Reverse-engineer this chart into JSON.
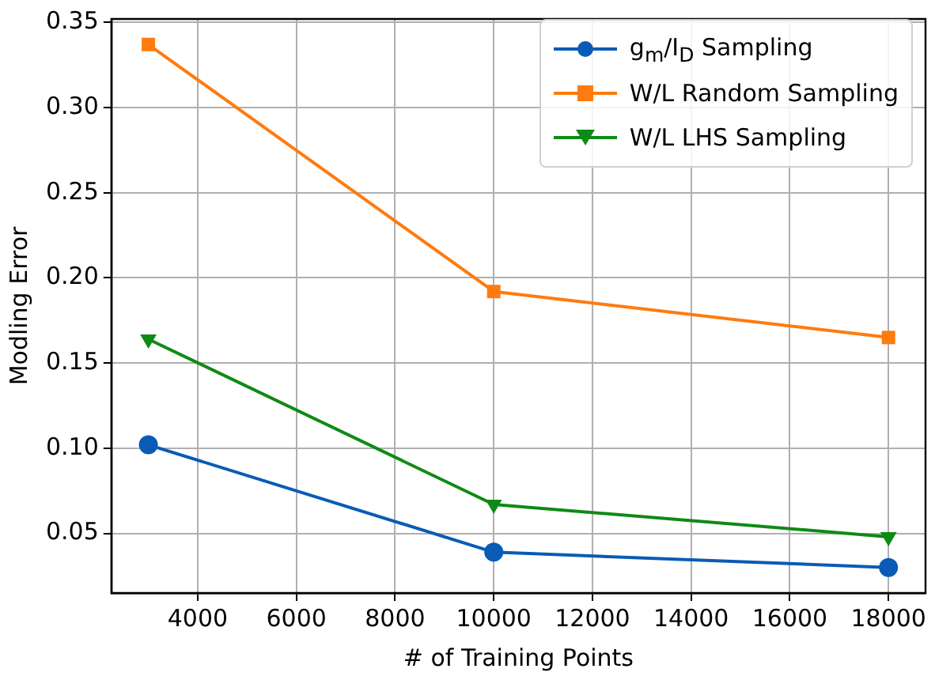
{
  "chart_data": {
    "type": "line",
    "xlabel": "# of Training Points",
    "ylabel": "Modling Error",
    "x": [
      3000,
      10000,
      18000
    ],
    "series": [
      {
        "name": "g$_{m}$/I$_{D}$ Sampling",
        "color": "#0a5bb5",
        "values": [
          0.102,
          0.039,
          0.03
        ],
        "marker": "circle"
      },
      {
        "name": "W/L Random Sampling",
        "color": "#ff7b0f",
        "values": [
          0.337,
          0.192,
          0.165
        ],
        "marker": "square"
      },
      {
        "name": "W/L LHS Sampling",
        "color": "#0f8a14",
        "values": [
          0.164,
          0.067,
          0.048
        ],
        "marker": "triangle"
      }
    ],
    "xlim": [
      2250,
      18750
    ],
    "xticks": [
      4000,
      6000,
      8000,
      10000,
      12000,
      14000,
      16000,
      18000
    ],
    "ylim": [
      0.015,
      0.352
    ],
    "yticks": [
      0.05,
      {
        "value": 0.1,
        "label": "0.10"
      },
      0.15,
      {
        "value": 0.2,
        "label": "0.20"
      },
      0.25,
      {
        "value": 0.3,
        "label": "0.30"
      },
      0.35
    ],
    "grid": true,
    "legend": "top right",
    "line_style": "solid"
  }
}
